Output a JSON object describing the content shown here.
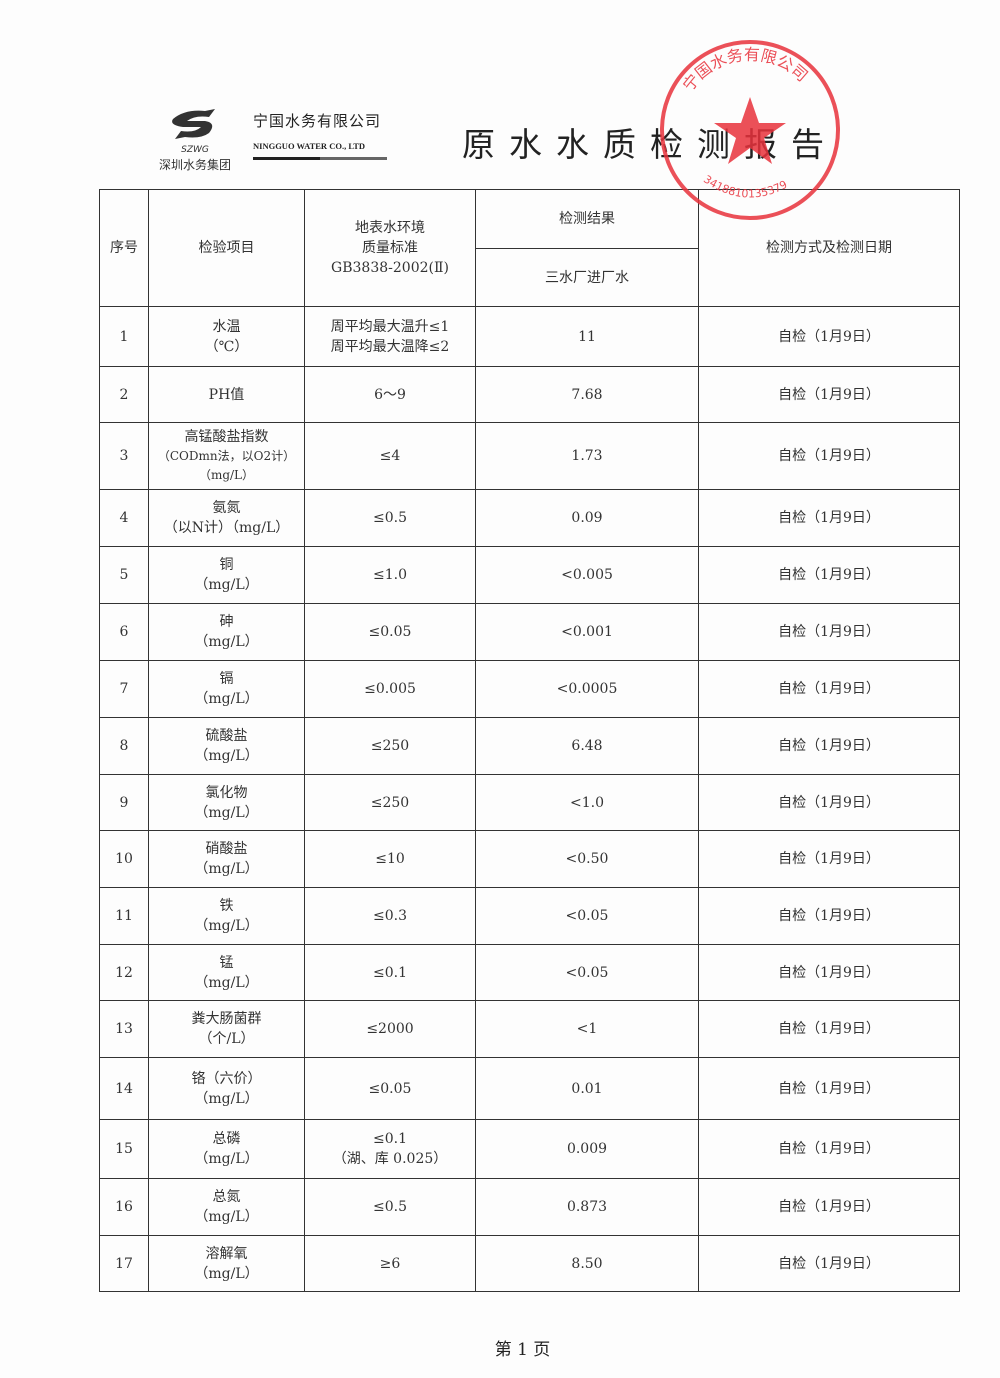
{
  "header": {
    "group_logo_text": "SZWG",
    "group_name": "深圳水务集团",
    "company_cn": "宁国水务有限公司",
    "company_en": "NINGGUO WATER CO., LTD",
    "title": "原水水质检测报告"
  },
  "stamp": {
    "text": "宁国水务有限公司",
    "code": "3418810135379",
    "color": "#e8323c"
  },
  "table": {
    "headers": {
      "no": "序号",
      "item": "检验项目",
      "standard": [
        "地表水环境",
        "质量标准",
        "GB3838-2002(Ⅱ)"
      ],
      "result": "检测结果",
      "result_sub": "三水厂进厂水",
      "method": "检测方式及检测日期"
    },
    "rows": [
      {
        "no": "1",
        "item": [
          "水温",
          "（℃）"
        ],
        "standard": [
          "周平均最大温升≤1",
          "周平均最大温降≤2"
        ],
        "result": "11",
        "method": "自检（1月9日）"
      },
      {
        "no": "2",
        "item": [
          "PH值"
        ],
        "standard": [
          "6～9"
        ],
        "result": "7.68",
        "method": "自检（1月9日）"
      },
      {
        "no": "3",
        "item": [
          "高锰酸盐指数",
          "（CODmn法，以O2计）",
          "（mg/L）"
        ],
        "standard": [
          "≤4"
        ],
        "result": "1.73",
        "method": "自检（1月9日）"
      },
      {
        "no": "4",
        "item": [
          "氨氮",
          "（以N计）（mg/L）"
        ],
        "standard": [
          "≤0.5"
        ],
        "result": "0.09",
        "method": "自检（1月9日）"
      },
      {
        "no": "5",
        "item": [
          "铜",
          "（mg/L）"
        ],
        "standard": [
          "≤1.0"
        ],
        "result": "<0.005",
        "method": "自检（1月9日）"
      },
      {
        "no": "6",
        "item": [
          "砷",
          "（mg/L）"
        ],
        "standard": [
          "≤0.05"
        ],
        "result": "<0.001",
        "method": "自检（1月9日）"
      },
      {
        "no": "7",
        "item": [
          "镉",
          "（mg/L）"
        ],
        "standard": [
          "≤0.005"
        ],
        "result": "<0.0005",
        "method": "自检（1月9日）"
      },
      {
        "no": "8",
        "item": [
          "硫酸盐",
          "（mg/L）"
        ],
        "standard": [
          "≤250"
        ],
        "result": "6.48",
        "method": "自检（1月9日）"
      },
      {
        "no": "9",
        "item": [
          "氯化物",
          "（mg/L）"
        ],
        "standard": [
          "≤250"
        ],
        "result": "<1.0",
        "method": "自检（1月9日）"
      },
      {
        "no": "10",
        "item": [
          "硝酸盐",
          "（mg/L）"
        ],
        "standard": [
          "≤10"
        ],
        "result": "<0.50",
        "method": "自检（1月9日）"
      },
      {
        "no": "11",
        "item": [
          "铁",
          "（mg/L）"
        ],
        "standard": [
          "≤0.3"
        ],
        "result": "<0.05",
        "method": "自检（1月9日）"
      },
      {
        "no": "12",
        "item": [
          "锰",
          "（mg/L）"
        ],
        "standard": [
          "≤0.1"
        ],
        "result": "<0.05",
        "method": "自检（1月9日）"
      },
      {
        "no": "13",
        "item": [
          "粪大肠菌群",
          "（个/L）"
        ],
        "standard": [
          "≤2000"
        ],
        "result": "<1",
        "method": "自检（1月9日）"
      },
      {
        "no": "14",
        "item": [
          "铬（六价）",
          "（mg/L）"
        ],
        "standard": [
          "≤0.05"
        ],
        "result": "0.01",
        "method": "自检（1月9日）"
      },
      {
        "no": "15",
        "item": [
          "总磷",
          "（mg/L）"
        ],
        "standard": [
          "≤0.1",
          "（湖、库 0.025）"
        ],
        "result": "0.009",
        "method": "自检（1月9日）"
      },
      {
        "no": "16",
        "item": [
          "总氮",
          "（mg/L）"
        ],
        "standard": [
          "≤0.5"
        ],
        "result": "0.873",
        "method": "自检（1月9日）"
      },
      {
        "no": "17",
        "item": [
          "溶解氧",
          "（mg/L）"
        ],
        "standard": [
          "≥6"
        ],
        "result": "8.50",
        "method": "自检（1月9日）"
      }
    ]
  },
  "footer": {
    "page": "第 1 页"
  }
}
